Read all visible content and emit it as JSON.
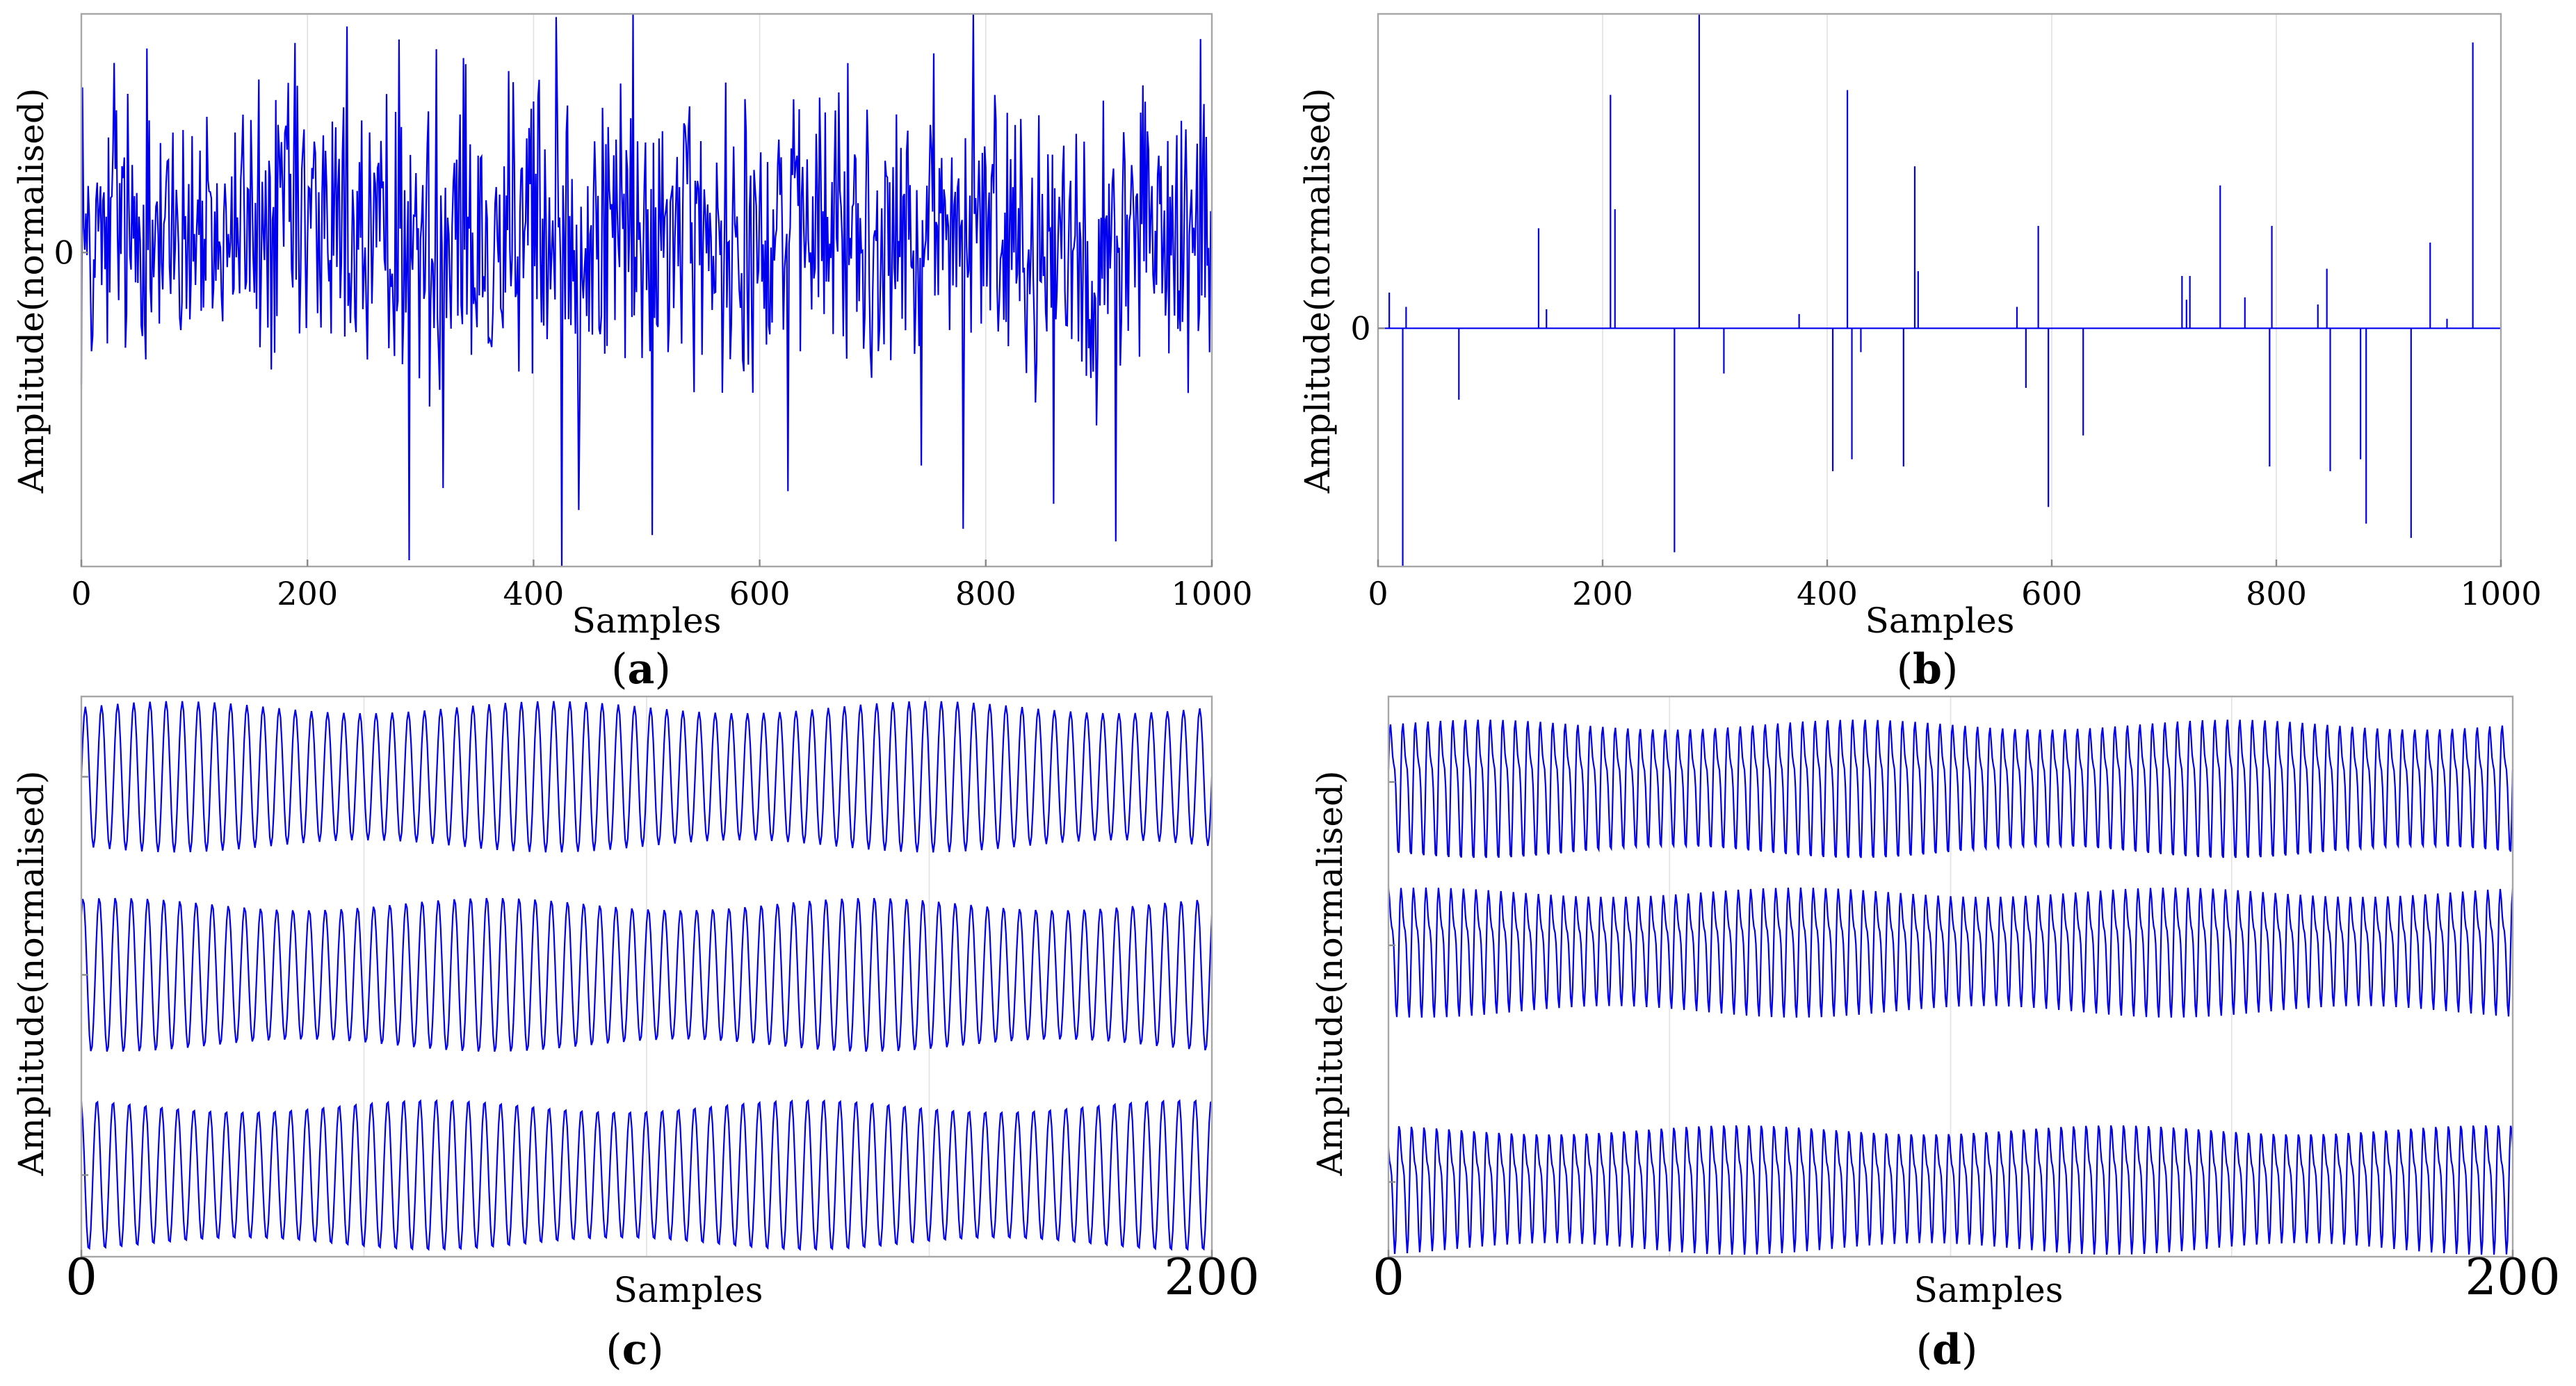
{
  "figure": {
    "line_color": "#0000ee",
    "frame_color": "#a6a6a6"
  },
  "chart_data": [
    {
      "panel": "a",
      "type": "line",
      "caption_open": "(",
      "caption_letter": "a",
      "caption_close": ")",
      "xlabel": "Samples",
      "ylabel": "Amplitude(normalised)",
      "xlim": [
        0,
        1000
      ],
      "ylim": [
        -1.0,
        0.76
      ],
      "x_ticks": [
        0,
        200,
        400,
        600,
        800,
        1000
      ],
      "x_tick_labels": [
        "0",
        "200",
        "400",
        "600",
        "800",
        "1000"
      ],
      "y_ticks": [
        0
      ],
      "y_tick_labels": [
        "0"
      ],
      "grid": "vertical",
      "signal": {
        "kind": "random_noise",
        "n": 1000,
        "description": "dense random signal fluctuating around 0",
        "spikes": [
          [
            290,
            -0.98
          ],
          [
            425,
            -1.0
          ],
          [
            420,
            0.75
          ],
          [
            235,
            0.72
          ],
          [
            990,
            0.68
          ],
          [
            915,
            -0.92
          ],
          [
            505,
            -0.9
          ],
          [
            780,
            -0.88
          ],
          [
            860,
            -0.8
          ],
          [
            440,
            -0.82
          ],
          [
            58,
            0.65
          ],
          [
            320,
            -0.75
          ],
          [
            340,
            0.6
          ],
          [
            625,
            -0.76
          ]
        ]
      }
    },
    {
      "panel": "b",
      "type": "line",
      "caption_open": "(",
      "caption_letter": "b",
      "caption_close": ")",
      "xlabel": "Samples",
      "ylabel": "Amplitude(normalised)",
      "xlim": [
        0,
        1000
      ],
      "ylim": [
        -1.0,
        1.32
      ],
      "x_ticks": [
        0,
        200,
        400,
        600,
        800,
        1000
      ],
      "x_tick_labels": [
        "0",
        "200",
        "400",
        "600",
        "800",
        "1000"
      ],
      "y_ticks": [
        0
      ],
      "y_tick_labels": [
        "0"
      ],
      "grid": "vertical",
      "signal": {
        "kind": "sparse_spikes",
        "n": 1000,
        "spikes": [
          [
            10,
            0.15
          ],
          [
            22,
            -1.0
          ],
          [
            25,
            0.09
          ],
          [
            72,
            -0.3
          ],
          [
            143,
            0.42
          ],
          [
            150,
            0.08
          ],
          [
            207,
            0.98
          ],
          [
            211,
            0.5
          ],
          [
            264,
            -0.94
          ],
          [
            286,
            1.35
          ],
          [
            308,
            -0.19
          ],
          [
            375,
            0.06
          ],
          [
            405,
            -0.6
          ],
          [
            418,
            1.0
          ],
          [
            422,
            -0.55
          ],
          [
            430,
            -0.1
          ],
          [
            468,
            -0.58
          ],
          [
            478,
            0.68
          ],
          [
            481,
            0.24
          ],
          [
            569,
            0.09
          ],
          [
            577,
            -0.25
          ],
          [
            588,
            0.43
          ],
          [
            597,
            -0.75
          ],
          [
            628,
            -0.45
          ],
          [
            716,
            0.22
          ],
          [
            720,
            0.12
          ],
          [
            723,
            0.22
          ],
          [
            750,
            0.6
          ],
          [
            772,
            0.13
          ],
          [
            794,
            -0.58
          ],
          [
            796,
            0.43
          ],
          [
            837,
            0.1
          ],
          [
            845,
            0.25
          ],
          [
            848,
            -0.6
          ],
          [
            875,
            -0.55
          ],
          [
            880,
            -0.82
          ],
          [
            920,
            -0.88
          ],
          [
            937,
            0.36
          ],
          [
            952,
            0.04
          ],
          [
            975,
            1.2
          ]
        ]
      }
    },
    {
      "panel": "c",
      "type": "line",
      "caption_open": "(",
      "caption_letter": "c",
      "caption_close": ")",
      "xlabel": "Samples",
      "ylabel": "Amplitude(normalised)",
      "xlim": [
        0,
        200
      ],
      "x_ticks": [
        0,
        200
      ],
      "x_tick_labels": [
        "0",
        "200"
      ],
      "grid": "vertical",
      "signals": [
        {
          "kind": "oscillation",
          "cycles": 70,
          "description": "top trace, periodic"
        },
        {
          "kind": "oscillation",
          "cycles": 70,
          "description": "middle trace, periodic"
        },
        {
          "kind": "oscillation",
          "cycles": 70,
          "description": "bottom trace, periodic"
        }
      ]
    },
    {
      "panel": "d",
      "type": "line",
      "caption_open": "(",
      "caption_letter": "d",
      "caption_close": ")",
      "xlabel": "Samples",
      "ylabel": "Amplitude(normalised)",
      "xlim": [
        0,
        200
      ],
      "x_ticks": [
        0,
        200
      ],
      "x_tick_labels": [
        "0",
        "200"
      ],
      "grid": "vertical",
      "signals": [
        {
          "kind": "oscillation",
          "cycles": 90,
          "description": "top trace, periodic with harmonic"
        },
        {
          "kind": "oscillation",
          "cycles": 90,
          "description": "middle trace, periodic with harmonic"
        },
        {
          "kind": "oscillation",
          "cycles": 90,
          "description": "bottom trace, periodic with harmonic"
        }
      ]
    }
  ]
}
